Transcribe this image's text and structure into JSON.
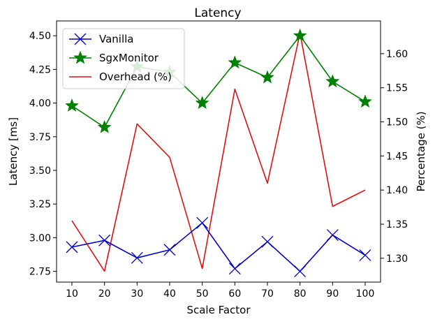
{
  "chart_data": {
    "type": "line",
    "title": "Latency",
    "xlabel": "Scale Factor",
    "ylabel": "Latency [ms]",
    "y2label": "Percentage (%)",
    "x": [
      10,
      20,
      30,
      40,
      50,
      60,
      70,
      80,
      90,
      100
    ],
    "xticks": [
      "10",
      "20",
      "30",
      "40",
      "50",
      "60",
      "70",
      "80",
      "90",
      "100"
    ],
    "ylim": [
      2.67,
      4.61
    ],
    "yticks": [
      "2.75",
      "3.00",
      "3.25",
      "3.50",
      "3.75",
      "4.00",
      "4.25",
      "4.50"
    ],
    "y2lim": [
      1.265,
      1.648
    ],
    "y2ticks": [
      "1.30",
      "1.35",
      "1.40",
      "1.45",
      "1.50",
      "1.55",
      "1.60"
    ],
    "grid": false,
    "legend_position": "top-left",
    "series": [
      {
        "name": "Vanilla",
        "axis": "left",
        "color": "#0000cc",
        "marker": "x",
        "values": [
          2.93,
          2.98,
          2.85,
          2.91,
          3.11,
          2.77,
          2.97,
          2.75,
          3.02,
          2.87
        ]
      },
      {
        "name": "SgxMonitor",
        "axis": "left",
        "color": "#008000",
        "marker": "star",
        "values": [
          3.98,
          3.82,
          4.27,
          4.23,
          4.0,
          4.3,
          4.19,
          4.5,
          4.16,
          4.01
        ]
      },
      {
        "name": "Overhead (%)",
        "axis": "right",
        "color": "#dd1111",
        "marker": "none",
        "values": [
          1.355,
          1.281,
          1.497,
          1.448,
          1.285,
          1.548,
          1.41,
          1.63,
          1.376,
          1.4
        ]
      }
    ]
  }
}
